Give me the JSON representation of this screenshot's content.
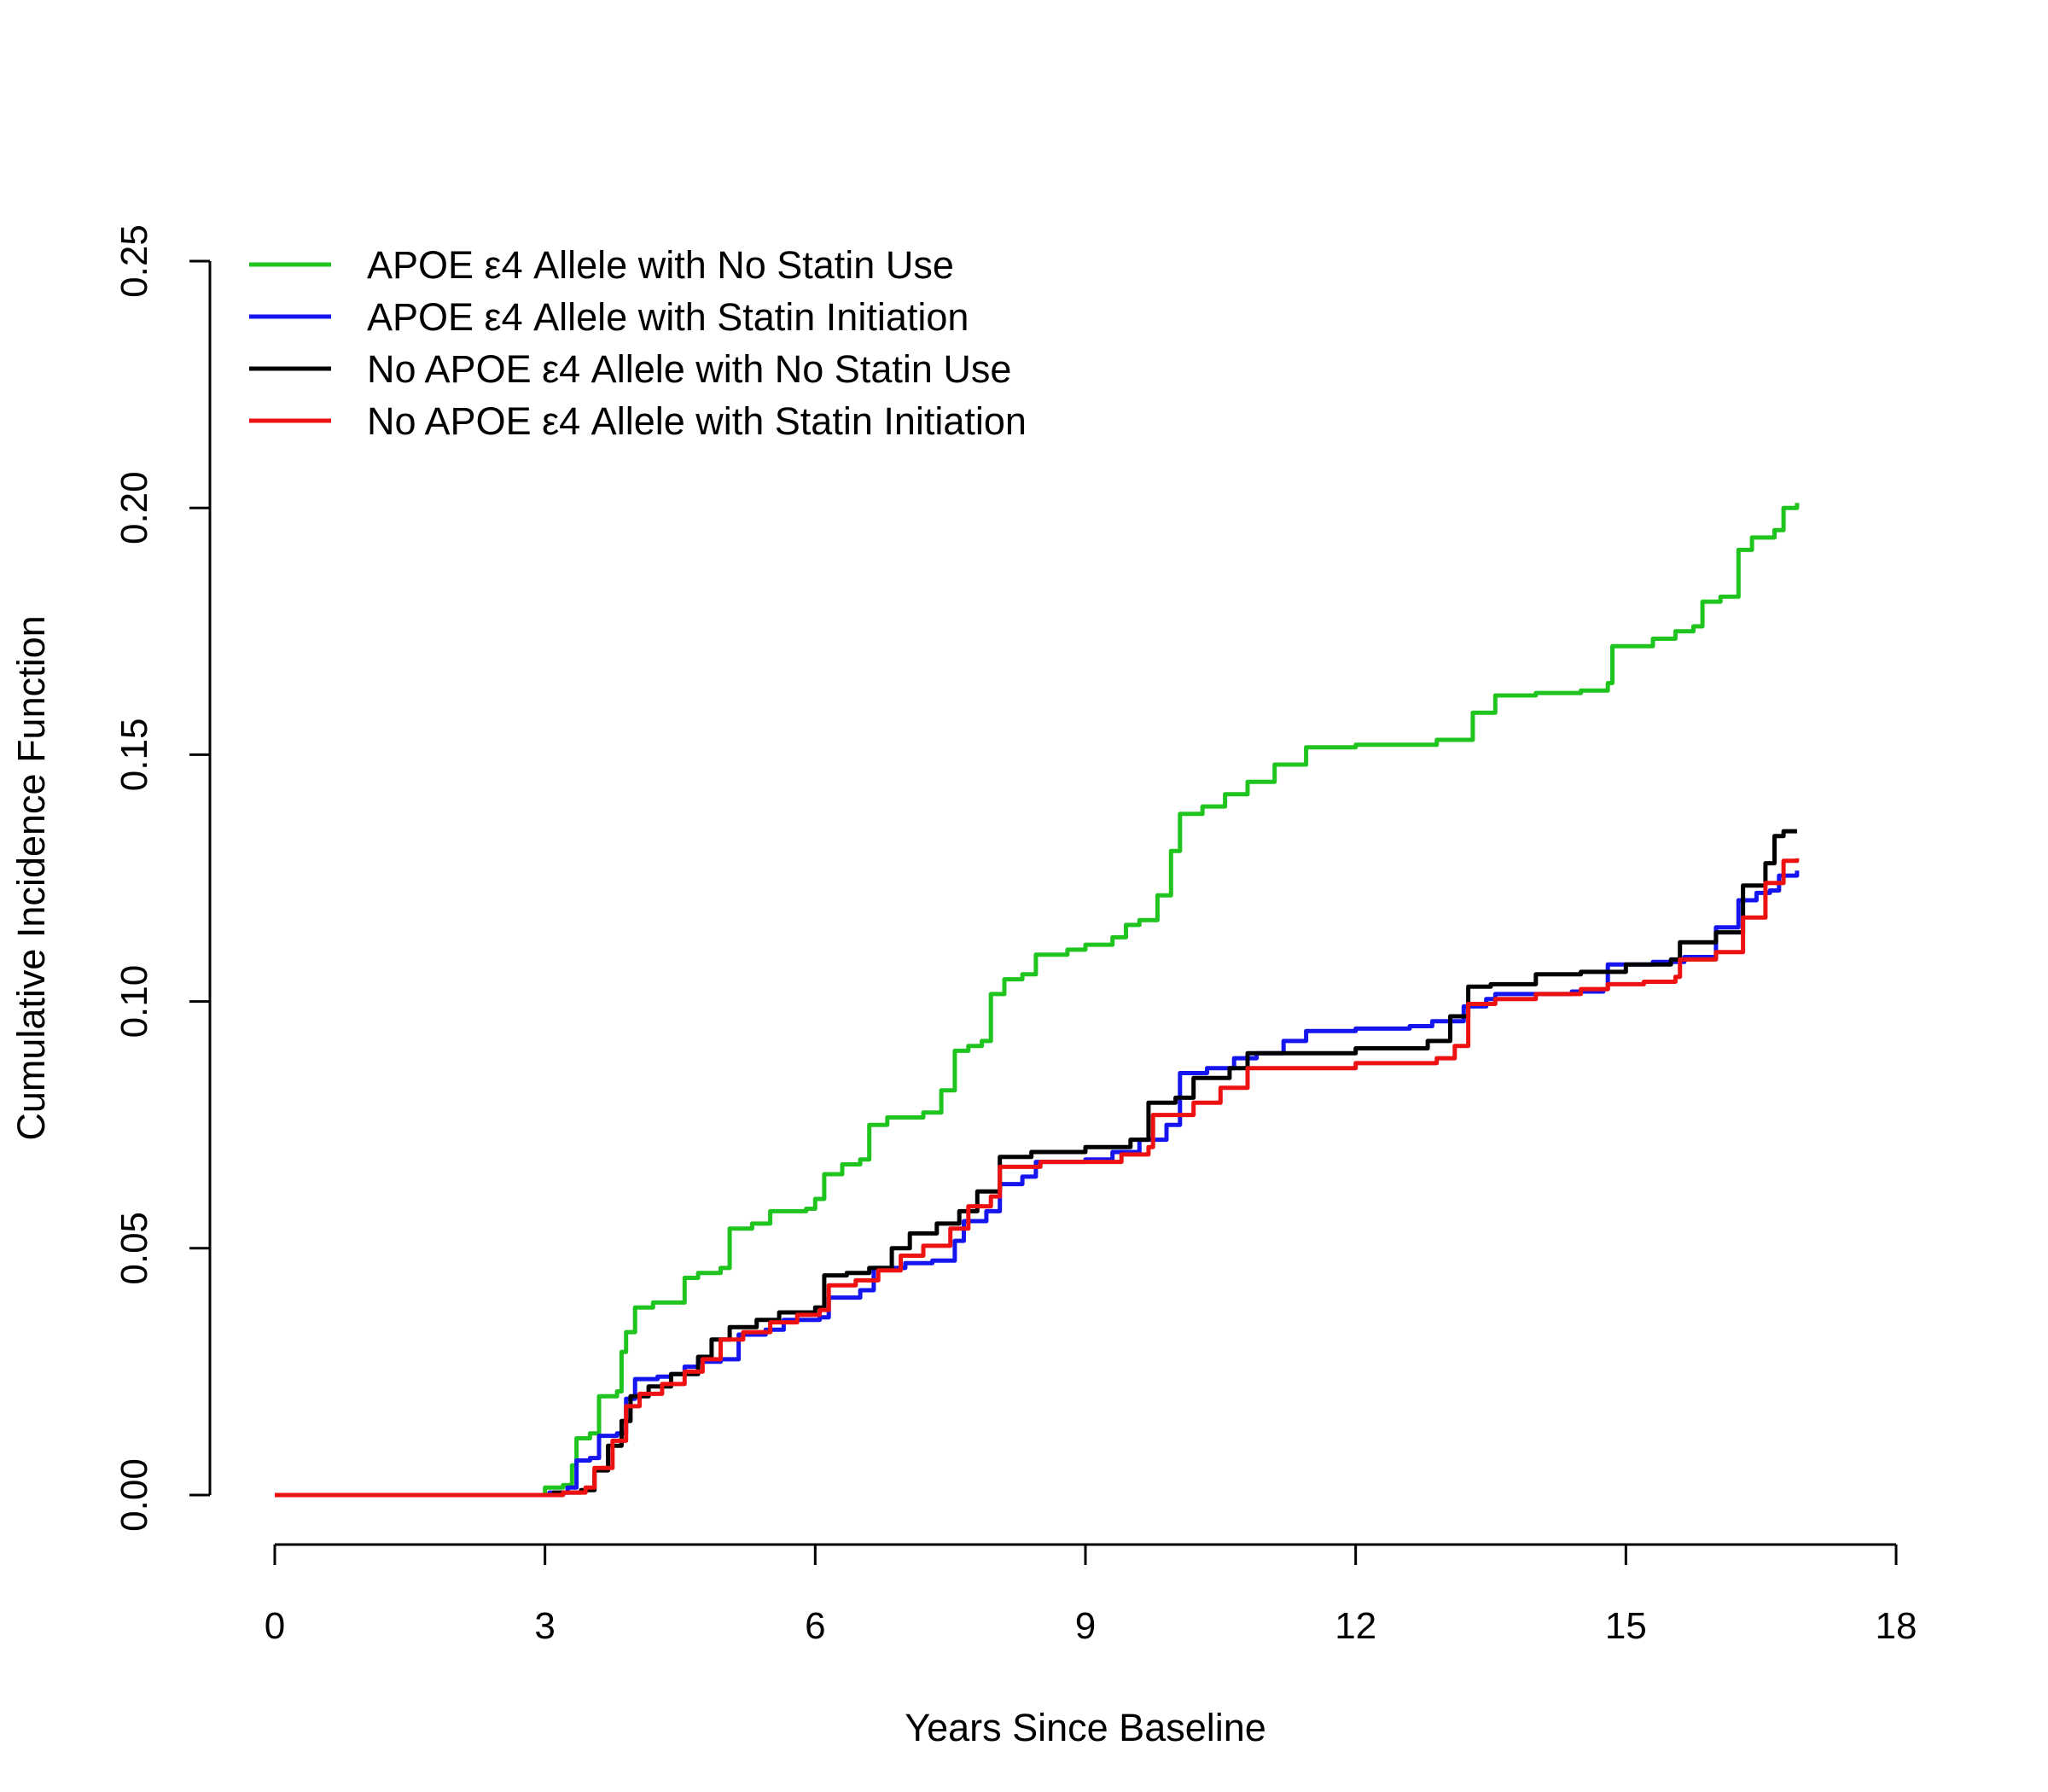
{
  "chart_data": {
    "type": "line",
    "title": "",
    "xlabel": "Years Since Baseline",
    "ylabel": "Cumulative Incidence Function",
    "xlim": [
      0,
      18
    ],
    "ylim": [
      0,
      0.25
    ],
    "x_ticks": [
      0,
      3,
      6,
      9,
      12,
      15,
      18
    ],
    "y_ticks": [
      0.0,
      0.05,
      0.1,
      0.15,
      0.2,
      0.25
    ],
    "x_tick_labels": [
      "0",
      "3",
      "6",
      "9",
      "12",
      "15",
      "18"
    ],
    "y_tick_labels": [
      "0.00",
      "0.05",
      "0.10",
      "0.15",
      "0.20",
      "0.25"
    ],
    "grid": false,
    "legend_position": "top-left",
    "series": [
      {
        "name": "APOE ε4 Allele with No Statin Use",
        "color": "#1fc41f",
        "points": [
          [
            0,
            0
          ],
          [
            3.0,
            0
          ],
          [
            3.0,
            0.0015
          ],
          [
            3.2,
            0.002
          ],
          [
            3.3,
            0.006
          ],
          [
            3.35,
            0.0115
          ],
          [
            3.5,
            0.0125
          ],
          [
            3.6,
            0.02
          ],
          [
            3.8,
            0.021
          ],
          [
            3.85,
            0.029
          ],
          [
            3.9,
            0.033
          ],
          [
            4.0,
            0.038
          ],
          [
            4.2,
            0.039
          ],
          [
            4.45,
            0.039
          ],
          [
            4.55,
            0.044
          ],
          [
            4.7,
            0.045
          ],
          [
            4.95,
            0.046
          ],
          [
            5.05,
            0.054
          ],
          [
            5.3,
            0.055
          ],
          [
            5.5,
            0.0575
          ],
          [
            5.9,
            0.058
          ],
          [
            6.0,
            0.06
          ],
          [
            6.1,
            0.065
          ],
          [
            6.3,
            0.067
          ],
          [
            6.5,
            0.068
          ],
          [
            6.6,
            0.075
          ],
          [
            6.8,
            0.0765
          ],
          [
            7.2,
            0.0775
          ],
          [
            7.4,
            0.082
          ],
          [
            7.55,
            0.09
          ],
          [
            7.7,
            0.091
          ],
          [
            7.85,
            0.092
          ],
          [
            7.95,
            0.1015
          ],
          [
            8.1,
            0.1045
          ],
          [
            8.3,
            0.1055
          ],
          [
            8.45,
            0.1095
          ],
          [
            8.8,
            0.1105
          ],
          [
            9.0,
            0.1115
          ],
          [
            9.3,
            0.113
          ],
          [
            9.45,
            0.1155
          ],
          [
            9.6,
            0.1165
          ],
          [
            9.8,
            0.1215
          ],
          [
            9.95,
            0.1305
          ],
          [
            10.05,
            0.138
          ],
          [
            10.3,
            0.1395
          ],
          [
            10.55,
            0.142
          ],
          [
            10.8,
            0.1445
          ],
          [
            11.1,
            0.148
          ],
          [
            11.45,
            0.1515
          ],
          [
            12.0,
            0.152
          ],
          [
            12.55,
            0.152
          ],
          [
            12.9,
            0.153
          ],
          [
            13.3,
            0.1585
          ],
          [
            13.55,
            0.162
          ],
          [
            14.0,
            0.1625
          ],
          [
            14.5,
            0.163
          ],
          [
            14.8,
            0.1645
          ],
          [
            14.85,
            0.172
          ],
          [
            15.3,
            0.1735
          ],
          [
            15.55,
            0.175
          ],
          [
            15.75,
            0.176
          ],
          [
            15.85,
            0.181
          ],
          [
            16.05,
            0.182
          ],
          [
            16.25,
            0.1915
          ],
          [
            16.4,
            0.194
          ],
          [
            16.65,
            0.1955
          ],
          [
            16.75,
            0.2
          ],
          [
            16.9,
            0.201
          ]
        ]
      },
      {
        "name": "APOE ε4 Allele with Statin Initiation",
        "color": "#1515f0",
        "points": [
          [
            0,
            0
          ],
          [
            3.0,
            0
          ],
          [
            3.05,
            0.0005
          ],
          [
            3.25,
            0.0015
          ],
          [
            3.35,
            0.007
          ],
          [
            3.5,
            0.0075
          ],
          [
            3.6,
            0.012
          ],
          [
            3.8,
            0.0125
          ],
          [
            3.9,
            0.0195
          ],
          [
            4.0,
            0.0235
          ],
          [
            4.25,
            0.024
          ],
          [
            4.4,
            0.0245
          ],
          [
            4.55,
            0.026
          ],
          [
            4.7,
            0.027
          ],
          [
            4.95,
            0.0275
          ],
          [
            5.15,
            0.0325
          ],
          [
            5.45,
            0.0335
          ],
          [
            5.65,
            0.0355
          ],
          [
            6.05,
            0.036
          ],
          [
            6.15,
            0.04
          ],
          [
            6.5,
            0.0415
          ],
          [
            6.65,
            0.046
          ],
          [
            7.0,
            0.047
          ],
          [
            7.3,
            0.0475
          ],
          [
            7.55,
            0.0515
          ],
          [
            7.65,
            0.0555
          ],
          [
            7.9,
            0.0575
          ],
          [
            8.05,
            0.063
          ],
          [
            8.3,
            0.0645
          ],
          [
            8.45,
            0.0675
          ],
          [
            9.0,
            0.068
          ],
          [
            9.3,
            0.0695
          ],
          [
            9.6,
            0.072
          ],
          [
            9.9,
            0.075
          ],
          [
            10.05,
            0.0855
          ],
          [
            10.35,
            0.0865
          ],
          [
            10.65,
            0.0885
          ],
          [
            10.9,
            0.0895
          ],
          [
            11.2,
            0.092
          ],
          [
            11.45,
            0.094
          ],
          [
            12.0,
            0.0945
          ],
          [
            12.6,
            0.095
          ],
          [
            12.85,
            0.096
          ],
          [
            13.2,
            0.099
          ],
          [
            13.45,
            0.1005
          ],
          [
            13.55,
            0.1015
          ],
          [
            14.0,
            0.1015
          ],
          [
            14.4,
            0.102
          ],
          [
            14.75,
            0.1025
          ],
          [
            14.8,
            0.1075
          ],
          [
            15.3,
            0.108
          ],
          [
            15.65,
            0.109
          ],
          [
            16.0,
            0.115
          ],
          [
            16.25,
            0.1205
          ],
          [
            16.45,
            0.122
          ],
          [
            16.6,
            0.1225
          ],
          [
            16.7,
            0.1255
          ],
          [
            16.9,
            0.1265
          ]
        ]
      },
      {
        "name": "No APOE ε4 Allele with No Statin Use",
        "color": "#000000",
        "points": [
          [
            0,
            0
          ],
          [
            3.0,
            0
          ],
          [
            3.1,
            0.0005
          ],
          [
            3.4,
            0.001
          ],
          [
            3.55,
            0.005
          ],
          [
            3.7,
            0.01
          ],
          [
            3.85,
            0.015
          ],
          [
            3.95,
            0.02
          ],
          [
            4.15,
            0.022
          ],
          [
            4.4,
            0.0245
          ],
          [
            4.7,
            0.028
          ],
          [
            4.85,
            0.0315
          ],
          [
            5.05,
            0.034
          ],
          [
            5.35,
            0.0355
          ],
          [
            5.6,
            0.037
          ],
          [
            6.0,
            0.038
          ],
          [
            6.1,
            0.0445
          ],
          [
            6.35,
            0.045
          ],
          [
            6.6,
            0.046
          ],
          [
            6.85,
            0.05
          ],
          [
            7.05,
            0.053
          ],
          [
            7.35,
            0.055
          ],
          [
            7.6,
            0.0575
          ],
          [
            7.8,
            0.0615
          ],
          [
            8.05,
            0.0685
          ],
          [
            8.4,
            0.0695
          ],
          [
            9.0,
            0.0705
          ],
          [
            9.5,
            0.072
          ],
          [
            9.7,
            0.0795
          ],
          [
            10.0,
            0.0805
          ],
          [
            10.2,
            0.0845
          ],
          [
            10.6,
            0.0865
          ],
          [
            10.8,
            0.0895
          ],
          [
            11.5,
            0.0895
          ],
          [
            12.0,
            0.0905
          ],
          [
            12.8,
            0.092
          ],
          [
            13.05,
            0.097
          ],
          [
            13.25,
            0.103
          ],
          [
            13.5,
            0.1035
          ],
          [
            14.0,
            0.1055
          ],
          [
            14.5,
            0.106
          ],
          [
            15.0,
            0.1075
          ],
          [
            15.5,
            0.1085
          ],
          [
            15.6,
            0.112
          ],
          [
            16.0,
            0.114
          ],
          [
            16.3,
            0.1235
          ],
          [
            16.55,
            0.128
          ],
          [
            16.65,
            0.1335
          ],
          [
            16.75,
            0.1345
          ],
          [
            16.9,
            0.1345
          ]
        ]
      },
      {
        "name": "No APOE ε4 Allele with Statin Initiation",
        "color": "#ee1111",
        "points": [
          [
            0,
            0
          ],
          [
            3.0,
            0
          ],
          [
            3.2,
            0.0005
          ],
          [
            3.45,
            0.0015
          ],
          [
            3.55,
            0.0055
          ],
          [
            3.75,
            0.011
          ],
          [
            3.9,
            0.018
          ],
          [
            4.05,
            0.0205
          ],
          [
            4.3,
            0.0225
          ],
          [
            4.55,
            0.025
          ],
          [
            4.75,
            0.0275
          ],
          [
            4.95,
            0.0315
          ],
          [
            5.2,
            0.033
          ],
          [
            5.5,
            0.035
          ],
          [
            5.8,
            0.0365
          ],
          [
            6.05,
            0.0375
          ],
          [
            6.15,
            0.0425
          ],
          [
            6.45,
            0.0435
          ],
          [
            6.7,
            0.0455
          ],
          [
            6.95,
            0.0485
          ],
          [
            7.2,
            0.0505
          ],
          [
            7.5,
            0.054
          ],
          [
            7.7,
            0.0585
          ],
          [
            7.95,
            0.0605
          ],
          [
            8.05,
            0.0665
          ],
          [
            8.5,
            0.0675
          ],
          [
            9.0,
            0.0675
          ],
          [
            9.4,
            0.069
          ],
          [
            9.7,
            0.0705
          ],
          [
            9.75,
            0.077
          ],
          [
            10.2,
            0.0795
          ],
          [
            10.5,
            0.0825
          ],
          [
            10.8,
            0.0865
          ],
          [
            11.4,
            0.0865
          ],
          [
            12.0,
            0.0875
          ],
          [
            12.9,
            0.0885
          ],
          [
            13.1,
            0.091
          ],
          [
            13.25,
            0.0995
          ],
          [
            13.55,
            0.1005
          ],
          [
            14.0,
            0.1015
          ],
          [
            14.5,
            0.1025
          ],
          [
            14.8,
            0.1035
          ],
          [
            15.2,
            0.104
          ],
          [
            15.55,
            0.105
          ],
          [
            15.6,
            0.1085
          ],
          [
            16.0,
            0.11
          ],
          [
            16.3,
            0.117
          ],
          [
            16.55,
            0.124
          ],
          [
            16.75,
            0.1285
          ],
          [
            16.9,
            0.129
          ]
        ]
      }
    ]
  }
}
